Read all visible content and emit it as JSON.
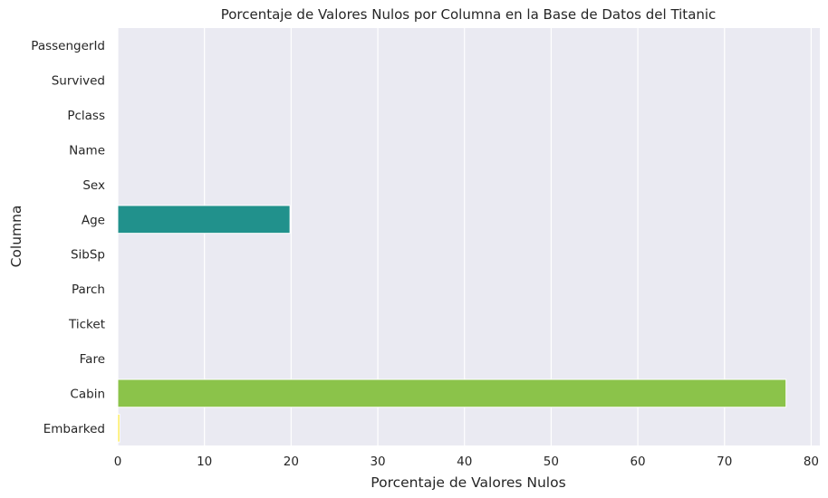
{
  "chart_data": {
    "type": "bar",
    "orientation": "horizontal",
    "title": "Porcentaje de Valores Nulos por Columna en la Base de Datos del Titanic",
    "xlabel": "Porcentaje de Valores Nulos",
    "ylabel": "Columna",
    "categories": [
      "PassengerId",
      "Survived",
      "Pclass",
      "Name",
      "Sex",
      "Age",
      "SibSp",
      "Parch",
      "Ticket",
      "Fare",
      "Cabin",
      "Embarked"
    ],
    "values": [
      0,
      0,
      0,
      0,
      0,
      19.87,
      0,
      0,
      0,
      0,
      77.1,
      0.22
    ],
    "colors": [
      "#440154",
      "#482475",
      "#414487",
      "#355f8d",
      "#2a788e",
      "#21918c",
      "#22a884",
      "#44bf70",
      "#7ad151",
      "#bddf26",
      "#8bc34a",
      "#fde725"
    ],
    "xlim": [
      0,
      81
    ],
    "xticks": [
      0,
      10,
      20,
      30,
      40,
      50,
      60,
      70,
      80
    ],
    "grid": true,
    "style": {
      "background": "#eaeaf2",
      "grid_color": "#ffffff",
      "text_color": "#262626"
    }
  }
}
